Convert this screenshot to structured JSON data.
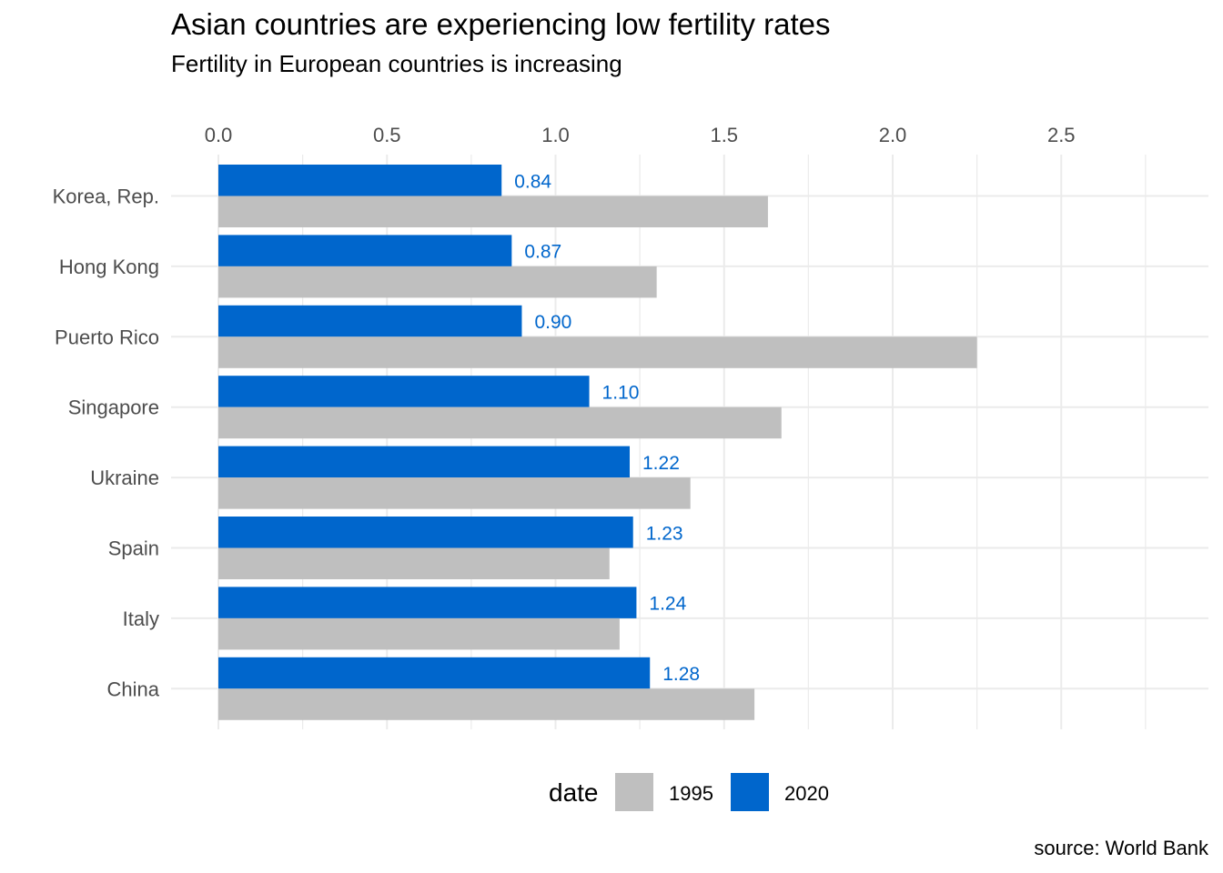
{
  "chart_data": {
    "type": "bar",
    "orientation": "horizontal",
    "title": "Asian countries are experiencing low fertility rates",
    "subtitle": "Fertility in European countries is increasing",
    "caption": "source: World Bank",
    "categories": [
      "Korea, Rep.",
      "Hong Kong",
      "Puerto Rico",
      "Singapore",
      "Ukraine",
      "Spain",
      "Italy",
      "China"
    ],
    "series": [
      {
        "name": "2020",
        "color": "#0066cc",
        "values": [
          0.84,
          0.87,
          0.9,
          1.1,
          1.22,
          1.23,
          1.24,
          1.28
        ]
      },
      {
        "name": "1995",
        "color": "#bfbfbf",
        "values": [
          1.63,
          1.3,
          2.25,
          1.67,
          1.4,
          1.16,
          1.19,
          1.59
        ]
      }
    ],
    "data_labels": [
      "0.84",
      "0.87",
      "0.90",
      "1.10",
      "1.22",
      "1.23",
      "1.24",
      "1.28"
    ],
    "x_axis": {
      "position": "top",
      "range": [
        0,
        2.9
      ],
      "ticks": [
        0.0,
        0.5,
        1.0,
        1.5,
        2.0,
        2.5
      ],
      "tick_labels": [
        "0.0",
        "0.5",
        "1.0",
        "1.5",
        "2.0",
        "2.5"
      ]
    },
    "grid": true,
    "legend": {
      "title": "date",
      "position": "bottom",
      "items": [
        {
          "label": "1995",
          "color": "#bfbfbf"
        },
        {
          "label": "2020",
          "color": "#0066cc"
        }
      ]
    }
  }
}
